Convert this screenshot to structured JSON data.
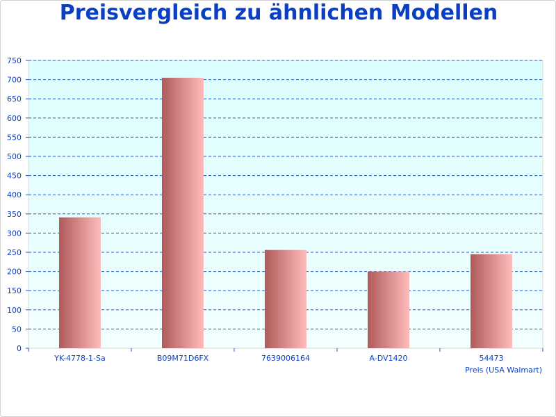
{
  "chart_data": {
    "type": "bar",
    "title": "Preisvergleich zu ähnlichen Modellen",
    "categories": [
      "YK-4778-1-Sa",
      "B09M71D6FX",
      "7639006164",
      "A-DV1420",
      "54473"
    ],
    "values": [
      341,
      705,
      256,
      200,
      245
    ],
    "xlabel": "Preis (USA Walmart)",
    "ylabel": "",
    "ylim": [
      0,
      750
    ],
    "yticks": [
      0,
      50,
      100,
      150,
      200,
      250,
      300,
      350,
      400,
      450,
      500,
      550,
      600,
      650,
      700,
      750
    ],
    "grid": true,
    "colors": {
      "bar_dark": "#b05a5a",
      "bar_light": "#ffbcbc",
      "plot_bg_top": "#dcfefe",
      "plot_bg_bottom": "#f2ffff",
      "grid": "#2255cc",
      "text": "#0a3fc4"
    }
  }
}
